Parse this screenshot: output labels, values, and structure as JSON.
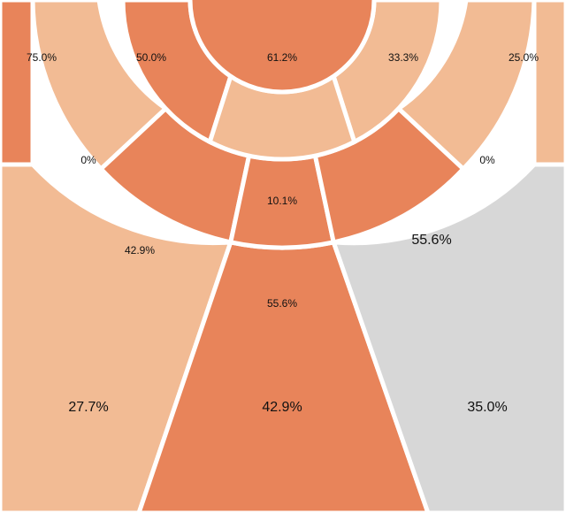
{
  "chart_data": {
    "type": "heatmap",
    "subtype": "basketball shot chart (zone shooting percentages)",
    "title": "",
    "colors": {
      "hot": "#e8845a",
      "warm": "#f2bb94",
      "neutral": "#d7d7d7",
      "border": "#ffffff"
    },
    "zones": [
      {
        "id": "restricted-area",
        "value": "61.2%",
        "level": "hot"
      },
      {
        "id": "paint-non-ra",
        "value": "10.1%",
        "level": "warm"
      },
      {
        "id": "short-mid-left-top",
        "value": "50.0%",
        "level": "hot"
      },
      {
        "id": "short-mid-right-top",
        "value": "33.3%",
        "level": "warm"
      },
      {
        "id": "mid-left-baseline",
        "value": "0%",
        "level": "warm"
      },
      {
        "id": "mid-right-baseline",
        "value": "0%",
        "level": "warm"
      },
      {
        "id": "mid-left-wing",
        "value": "42.9%",
        "level": "hot"
      },
      {
        "id": "mid-center",
        "value": "55.6%",
        "level": "hot"
      },
      {
        "id": "mid-right-wing",
        "value": "55.6%",
        "level": "hot"
      },
      {
        "id": "corner-three-left",
        "value": "75.0%",
        "level": "hot"
      },
      {
        "id": "corner-three-right",
        "value": "25.0%",
        "level": "warm"
      },
      {
        "id": "three-left-wing",
        "value": "27.7%",
        "level": "warm"
      },
      {
        "id": "three-center",
        "value": "42.9%",
        "level": "hot"
      },
      {
        "id": "three-right-wing",
        "value": "35.0%",
        "level": "neutral"
      }
    ]
  }
}
